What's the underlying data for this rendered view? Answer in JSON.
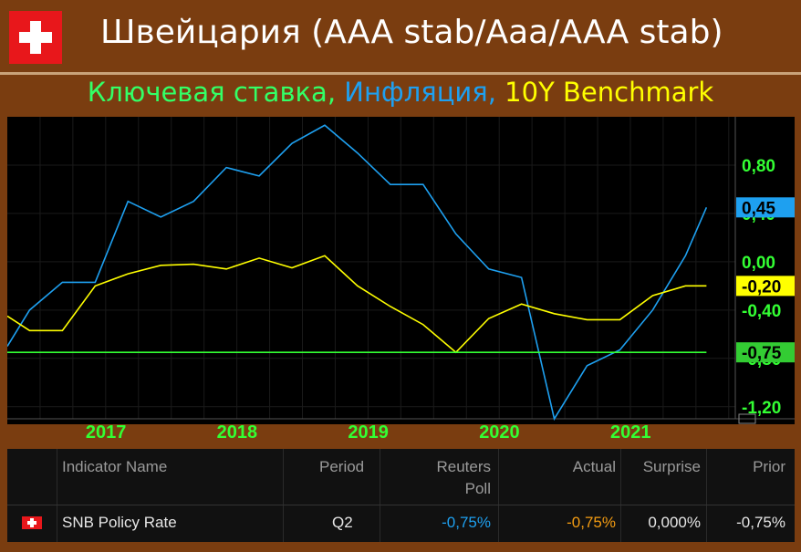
{
  "header": {
    "title": "Швейцария (AAA stab/Aaa/AAA stab)",
    "subtitle_parts": [
      {
        "text": "Ключевая ставка, ",
        "color": "#33ff66"
      },
      {
        "text": "Инфляция, ",
        "color": "#1ea0f0"
      },
      {
        "text": "10Y Benchmark",
        "color": "#ffff00"
      }
    ]
  },
  "chart_data": {
    "type": "line",
    "x_ticks": [
      "2017",
      "2018",
      "2019",
      "2020",
      "2021"
    ],
    "y_ticks": [
      "0,80",
      "0,40",
      "0,00",
      "-0,40",
      "-0,80",
      "-1,20"
    ],
    "ylim": [
      -1.3,
      1.2
    ],
    "xlim": [
      2016.25,
      2021.8
    ],
    "badges": [
      {
        "label": "0,45",
        "value": 0.45,
        "bg": "#1ea0f0",
        "fg": "#000000"
      },
      {
        "label": "-0,20",
        "value": -0.2,
        "bg": "#ffff00",
        "fg": "#000000"
      },
      {
        "label": "-0,75",
        "value": -0.75,
        "bg": "#33cc33",
        "fg": "#000000"
      }
    ],
    "series": [
      {
        "color": "#1ea0f0",
        "x": [
          2016.25,
          2016.42,
          2016.67,
          2016.92,
          2017.17,
          2017.42,
          2017.67,
          2017.92,
          2018.17,
          2018.42,
          2018.67,
          2018.92,
          2019.17,
          2019.42,
          2019.67,
          2019.92,
          2020.17,
          2020.42,
          2020.67,
          2020.92,
          2021.17,
          2021.42,
          2021.58
        ],
        "y": [
          -0.7,
          -0.4,
          -0.17,
          -0.17,
          0.5,
          0.37,
          0.5,
          0.78,
          0.71,
          0.98,
          1.13,
          0.9,
          0.64,
          0.64,
          0.23,
          -0.06,
          -0.13,
          -1.3,
          -0.86,
          -0.73,
          -0.4,
          0.05,
          0.45
        ]
      },
      {
        "color": "#ffff00",
        "x": [
          2016.25,
          2016.42,
          2016.67,
          2016.92,
          2017.17,
          2017.42,
          2017.67,
          2017.92,
          2018.17,
          2018.42,
          2018.67,
          2018.92,
          2019.17,
          2019.42,
          2019.67,
          2019.92,
          2020.17,
          2020.42,
          2020.67,
          2020.92,
          2021.17,
          2021.42,
          2021.58
        ],
        "y": [
          -0.45,
          -0.57,
          -0.57,
          -0.2,
          -0.1,
          -0.03,
          -0.02,
          -0.06,
          0.03,
          -0.05,
          0.05,
          -0.2,
          -0.37,
          -0.52,
          -0.75,
          -0.47,
          -0.35,
          -0.43,
          -0.48,
          -0.48,
          -0.28,
          -0.2,
          -0.2
        ]
      },
      {
        "color": "#33ff33",
        "x": [
          2016.25,
          2021.58
        ],
        "y": [
          -0.75,
          -0.75
        ]
      }
    ]
  },
  "table": {
    "headers": [
      "Indicator Name",
      "Period",
      "Reuters Poll",
      "Actual",
      "Surprise",
      "Prior"
    ],
    "row": {
      "name": "SNB Policy Rate",
      "period": "Q2",
      "poll": "-0,75%",
      "actual": "-0,75%",
      "surprise": "0,000%",
      "prior": "-0,75%"
    },
    "colors": {
      "poll": "#1ea0f0",
      "actual": "#f39c12"
    }
  }
}
